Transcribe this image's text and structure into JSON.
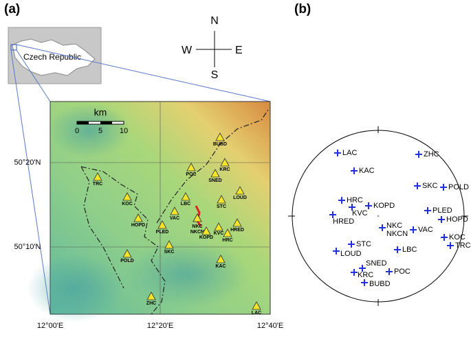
{
  "panel_a": {
    "label": "(a)",
    "compass": {
      "north": "N",
      "east": "E",
      "south": "S",
      "west": "W"
    },
    "inset_label": "Czech Republic",
    "scale": {
      "unit": "km",
      "ticks": [
        "0",
        "5",
        "10"
      ]
    },
    "lat_labels": [
      "50°20'N",
      "50°10'N"
    ],
    "lon_labels": [
      "12°00'E",
      "12°20'E",
      "12°40'E"
    ],
    "stations": [
      "BUBD",
      "KRC",
      "POC",
      "SNED",
      "TRC",
      "KOC",
      "LOUD",
      "STC",
      "LBC",
      "HOPD",
      "VAC",
      "NKC",
      "NKCN",
      "KOPD",
      "KVC",
      "HRED",
      "HRC",
      "PLED",
      "SKC",
      "POLD",
      "KAC",
      "ZHC",
      "LAC"
    ]
  },
  "panel_b": {
    "label": "(b)",
    "stations": [
      "LAC",
      "KAC",
      "ZHC",
      "SKC",
      "POLD",
      "HRC",
      "KOPD",
      "KVC",
      "HRED",
      "PLED",
      "HOPD",
      "NKC",
      "NKCN",
      "VAC",
      "KOC",
      "TRC",
      "STC",
      "LOUD",
      "LBC",
      "SNED",
      "KRC",
      "POC",
      "BUBD"
    ]
  }
}
